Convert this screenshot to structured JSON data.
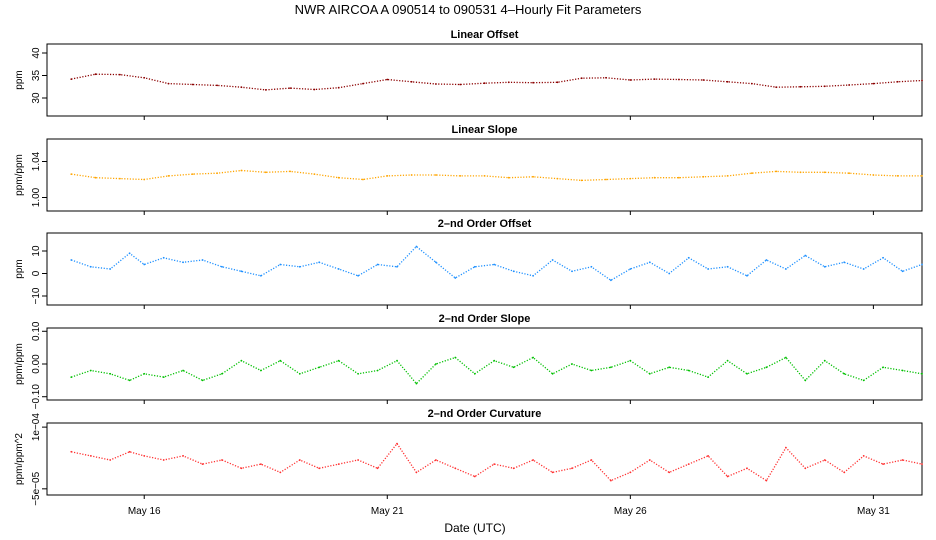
{
  "title": "NWR   AIRCOA A   090514 to 090531   4–Hourly Fit Parameters",
  "xlabel": "Date (UTC)",
  "x_ticks": [
    {
      "label": "May 16",
      "day": 16
    },
    {
      "label": "May 21",
      "day": 21
    },
    {
      "label": "May 26",
      "day": 26
    },
    {
      "label": "May 31",
      "day": 31
    }
  ],
  "chart_data": [
    {
      "type": "line",
      "title": "Linear Offset",
      "ylabel": "ppm",
      "x_range_days": [
        14.0,
        32.0
      ],
      "ylim": [
        26,
        42
      ],
      "yticks": [
        "30",
        "35",
        "40"
      ],
      "yticks_values": [
        30,
        35,
        40
      ],
      "color": "#8b0000",
      "series": [
        {
          "x_days": [
            14.5,
            15.0,
            15.5,
            16.0,
            16.5,
            17.0,
            17.5,
            18.0,
            18.5,
            19.0,
            19.5,
            20.0,
            20.5,
            21.0,
            21.5,
            22.0,
            22.5,
            23.0,
            23.5,
            24.0,
            24.5,
            25.0,
            25.5,
            26.0,
            26.5,
            27.0,
            27.5,
            28.0,
            28.5,
            29.0,
            29.5,
            30.0,
            30.5,
            31.0,
            31.5,
            32.0
          ],
          "values": [
            34.2,
            35.3,
            35.2,
            34.5,
            33.2,
            33.0,
            32.8,
            32.4,
            31.8,
            32.2,
            31.9,
            32.3,
            33.2,
            34.1,
            33.6,
            33.1,
            33.0,
            33.3,
            33.5,
            33.4,
            33.5,
            34.4,
            34.5,
            34.0,
            34.2,
            34.1,
            34.0,
            33.6,
            33.2,
            32.4,
            32.5,
            32.6,
            32.9,
            33.2,
            33.6,
            33.9
          ]
        }
      ]
    },
    {
      "type": "line",
      "title": "Linear Slope",
      "ylabel": "ppm/ppm",
      "x_range_days": [
        14.0,
        32.0
      ],
      "ylim": [
        0.985,
        1.065
      ],
      "yticks": [
        "1.00",
        "1.04"
      ],
      "yticks_values": [
        1.0,
        1.04
      ],
      "color": "#ffa500",
      "series": [
        {
          "x_days": [
            14.5,
            15.0,
            15.5,
            16.0,
            16.5,
            17.0,
            17.5,
            18.0,
            18.5,
            19.0,
            19.5,
            20.0,
            20.5,
            21.0,
            21.5,
            22.0,
            22.5,
            23.0,
            23.5,
            24.0,
            24.5,
            25.0,
            25.5,
            26.0,
            26.5,
            27.0,
            27.5,
            28.0,
            28.5,
            29.0,
            29.5,
            30.0,
            30.5,
            31.0,
            31.5,
            32.0
          ],
          "values": [
            1.026,
            1.022,
            1.021,
            1.02,
            1.024,
            1.026,
            1.027,
            1.03,
            1.028,
            1.029,
            1.026,
            1.022,
            1.02,
            1.024,
            1.025,
            1.025,
            1.024,
            1.024,
            1.022,
            1.023,
            1.021,
            1.019,
            1.02,
            1.021,
            1.022,
            1.022,
            1.023,
            1.024,
            1.027,
            1.029,
            1.028,
            1.028,
            1.027,
            1.025,
            1.024,
            1.024
          ]
        }
      ]
    },
    {
      "type": "line",
      "title": "2–nd Order Offset",
      "ylabel": "ppm",
      "x_range_days": [
        14.0,
        32.0
      ],
      "ylim": [
        -14,
        18
      ],
      "yticks": [
        "−10",
        "0",
        "10"
      ],
      "yticks_values": [
        -10,
        0,
        10
      ],
      "color": "#1e90ff",
      "series": [
        {
          "x_days": [
            14.5,
            14.9,
            15.3,
            15.7,
            16.0,
            16.4,
            16.8,
            17.2,
            17.6,
            18.0,
            18.4,
            18.8,
            19.2,
            19.6,
            20.0,
            20.4,
            20.8,
            21.2,
            21.6,
            22.0,
            22.4,
            22.8,
            23.2,
            23.6,
            24.0,
            24.4,
            24.8,
            25.2,
            25.6,
            26.0,
            26.4,
            26.8,
            27.2,
            27.6,
            28.0,
            28.4,
            28.8,
            29.2,
            29.6,
            30.0,
            30.4,
            30.8,
            31.2,
            31.6,
            32.0
          ],
          "values": [
            6,
            3,
            2,
            9,
            4,
            7,
            5,
            6,
            3,
            1,
            -1,
            4,
            3,
            5,
            2,
            -1,
            4,
            3,
            12,
            5,
            -2,
            3,
            4,
            1,
            -1,
            6,
            1,
            3,
            -3,
            2,
            5,
            0,
            7,
            2,
            3,
            -1,
            6,
            2,
            8,
            3,
            5,
            2,
            7,
            1,
            4
          ]
        }
      ]
    },
    {
      "type": "line",
      "title": "2–nd Order Slope",
      "ylabel": "ppm/ppm",
      "x_range_days": [
        14.0,
        32.0
      ],
      "ylim": [
        -0.11,
        0.11
      ],
      "yticks": [
        "−0.10",
        "0.00",
        "0.10"
      ],
      "yticks_values": [
        -0.1,
        0.0,
        0.1
      ],
      "color": "#00c000",
      "series": [
        {
          "x_days": [
            14.5,
            14.9,
            15.3,
            15.7,
            16.0,
            16.4,
            16.8,
            17.2,
            17.6,
            18.0,
            18.4,
            18.8,
            19.2,
            19.6,
            20.0,
            20.4,
            20.8,
            21.2,
            21.6,
            22.0,
            22.4,
            22.8,
            23.2,
            23.6,
            24.0,
            24.4,
            24.8,
            25.2,
            25.6,
            26.0,
            26.4,
            26.8,
            27.2,
            27.6,
            28.0,
            28.4,
            28.8,
            29.2,
            29.6,
            30.0,
            30.4,
            30.8,
            31.2,
            31.6,
            32.0
          ],
          "values": [
            -0.04,
            -0.02,
            -0.03,
            -0.05,
            -0.03,
            -0.04,
            -0.02,
            -0.05,
            -0.03,
            0.01,
            -0.02,
            0.01,
            -0.03,
            -0.01,
            0.01,
            -0.03,
            -0.02,
            0.01,
            -0.06,
            0.0,
            0.02,
            -0.03,
            0.01,
            -0.01,
            0.02,
            -0.03,
            0.0,
            -0.02,
            -0.01,
            0.01,
            -0.03,
            -0.01,
            -0.02,
            -0.04,
            0.01,
            -0.03,
            -0.01,
            0.02,
            -0.05,
            0.01,
            -0.03,
            -0.05,
            -0.01,
            -0.02,
            -0.03
          ]
        }
      ]
    },
    {
      "type": "line",
      "title": "2–nd Order Curvature",
      "ylabel": "ppm/ppm^2",
      "x_range_days": [
        14.0,
        32.0
      ],
      "ylim": [
        -6.5e-05,
        0.00011
      ],
      "yticks": [
        "−5e−05",
        "1e−04"
      ],
      "yticks_values": [
        -5e-05,
        0.0001
      ],
      "color": "#ff3030",
      "series": [
        {
          "x_days": [
            14.5,
            14.9,
            15.3,
            15.7,
            16.0,
            16.4,
            16.8,
            17.2,
            17.6,
            18.0,
            18.4,
            18.8,
            19.2,
            19.6,
            20.0,
            20.4,
            20.8,
            21.2,
            21.6,
            22.0,
            22.4,
            22.8,
            23.2,
            23.6,
            24.0,
            24.4,
            24.8,
            25.2,
            25.6,
            26.0,
            26.4,
            26.8,
            27.2,
            27.6,
            28.0,
            28.4,
            28.8,
            29.2,
            29.6,
            30.0,
            30.4,
            30.8,
            31.2,
            31.6,
            32.0
          ],
          "values": [
            4e-05,
            3e-05,
            2e-05,
            4e-05,
            3e-05,
            2e-05,
            3e-05,
            1e-05,
            2e-05,
            0.0,
            1e-05,
            -1e-05,
            2e-05,
            0.0,
            1e-05,
            2e-05,
            0.0,
            6e-05,
            -1e-05,
            2e-05,
            0.0,
            -2e-05,
            1e-05,
            0.0,
            2e-05,
            -1e-05,
            0.0,
            2e-05,
            -3e-05,
            -1e-05,
            2e-05,
            -1e-05,
            1e-05,
            3e-05,
            -2e-05,
            0.0,
            -3e-05,
            5e-05,
            0.0,
            2e-05,
            -1e-05,
            3e-05,
            1e-05,
            2e-05,
            1e-05
          ]
        }
      ]
    }
  ]
}
